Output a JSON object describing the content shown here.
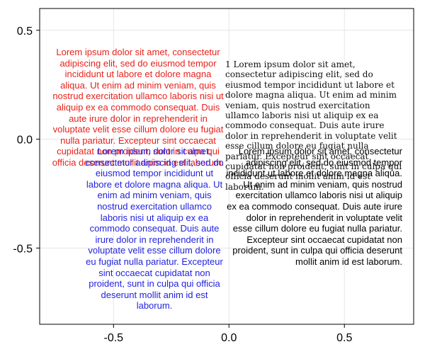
{
  "chart_data": {
    "type": "scatter",
    "xlim": [
      -0.82,
      0.8
    ],
    "ylim": [
      -0.85,
      0.6
    ],
    "xticks": [
      -0.5,
      0.0,
      0.5
    ],
    "xtick_labels": [
      "-0.5",
      "0.0",
      "0.5"
    ],
    "yticks": [
      -0.5,
      0.0,
      0.5
    ],
    "ytick_labels": [
      "-0.5",
      "0.0",
      "0.5"
    ],
    "grid": true,
    "annotations": [
      {
        "name": "red-center-text",
        "x": 0.0,
        "y": 0.0,
        "align": "center",
        "valign": "bottom",
        "color": "#e8221b",
        "font": "sans",
        "text": "Lorem ipsum dolor sit amet, consectetur adipiscing elit, sed do eiusmod tempor incididunt ut labore et dolore magna aliqua. Ut enim ad minim veniam, quis nostrud exercitation ullamco laboris nisi ut aliquip ex ea commodo consequat. Duis aute irure dolor in reprehenderit in voluptate velit esse cillum dolore eu fugiat nulla pariatur. Excepteur sint occaecat cupidatat non proident, sunt in culpa qui officia deserunt mollit anim id est laborum."
      },
      {
        "name": "blue-center-text",
        "x": 0.0,
        "y": 0.0,
        "align": "center",
        "valign": "top",
        "color": "#1f1fe0",
        "font": "sans",
        "text": "Lorem ipsum dolor sit amet, consectetur adipiscing elit, sed do eiusmod tempor incididunt ut labore et dolore magna aliqua. Ut enim ad minim veniam, quis nostrud exercitation ullamco laboris nisi ut aliquip ex ea commodo consequat. Duis aute irure dolor in reprehenderit in voluptate velit esse cillum dolore eu fugiat nulla pariatur. Excepteur sint occaecat cupidatat non proident, sunt in culpa qui officia deserunt mollit anim id est laborum."
      },
      {
        "name": "serif-left-text",
        "x": 0.0,
        "y": 0.0,
        "align": "left",
        "valign": "bottom",
        "color": "#111111",
        "font": "serif",
        "text": "1 Lorem ipsum dolor sit amet, consectetur adipiscing elit, sed do eiusmod tempor incididunt ut labore et dolore magna aliqua. Ut enim ad minim veniam, quis nostrud exercitation ullamco laboris nisi ut aliquip ex ea commodo consequat. Duis aute irure dolor in reprehenderit in voluptate velit esse cillum dolore eu fugiat nulla pariatur. Excepteur sint occaecat cupidatat non proident, sunt in culpa qui officia deserunt mollit anim id est laborum."
      },
      {
        "name": "black-right-text",
        "x": 0.0,
        "y": 0.0,
        "align": "right",
        "valign": "top",
        "color": "#000000",
        "font": "sans",
        "text": "Lorem ipsum dolor sit amet, consectetur adipiscing elit, sed do eiusmod tempor incididunt ut labore et dolore magna aliqua. Ut enim ad minim veniam, quis nostrud exercitation ullamco laboris nisi ut aliquip ex ea commodo consequat. Duis aute irure dolor in reprehenderit in voluptate velit esse cillum dolore eu fugiat nulla pariatur. Excepteur sint occaecat cupidatat non proident, sunt in culpa qui officia deserunt mollit anim id est laborum."
      }
    ]
  }
}
